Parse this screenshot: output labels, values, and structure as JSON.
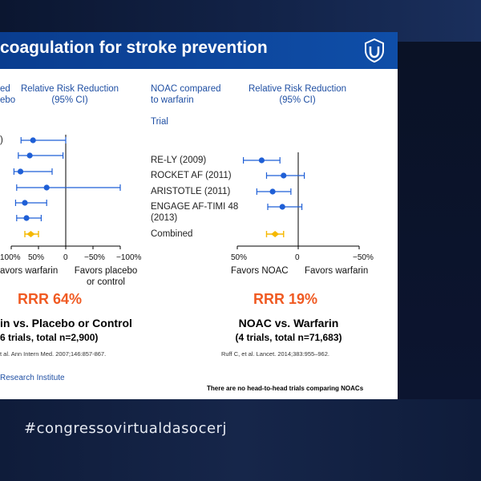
{
  "slide": {
    "title": "coagulation for stroke prevention",
    "footer_left": "Research Institute",
    "footer_note": "There are no head-to-head trials comparing NOACs"
  },
  "hashtag": "#congressovirtualdasocerj",
  "left_panel": {
    "header_left": [
      "ed",
      "ebo"
    ],
    "header_right": [
      "Relative Risk Reduction",
      "(95% CI)"
    ],
    "ticks": [
      "100%",
      "50%",
      "0",
      "−50%",
      "−100%"
    ],
    "favors_left": "avors warfarin",
    "favors_right": [
      "Favors placebo",
      "or control"
    ],
    "rrr": "RRR 64%",
    "comparison": "in vs. Placebo or Control",
    "subtitle": "6 trials, total n=2,900)",
    "citation": "t al. Ann Intern Med. 2007;146:857-867.",
    "first_label": ")"
  },
  "right_panel": {
    "header_left": [
      "NOAC compared",
      "to warfarin"
    ],
    "header_right": [
      "Relative Risk Reduction",
      "(95% CI)"
    ],
    "trial_header": "Trial",
    "trials": [
      "RE-LY (2009)",
      "ROCKET AF (2011)",
      "ARISTOTLE (2011)",
      "ENGAGE AF-TIMI 48",
      "(2013)",
      "Combined"
    ],
    "ticks": [
      "50%",
      "0",
      "−50%"
    ],
    "favors_left": "Favors NOAC",
    "favors_right": "Favors warfarin",
    "rrr": "RRR 19%",
    "comparison": "NOAC vs. Warfarin",
    "subtitle": "(4 trials, total n=71,683)",
    "citation": "Ruff C, et al. Lancet. 2014;383:955–962."
  },
  "colors": {
    "point": "#1f5fd6",
    "combined": "#f5b800",
    "rrr": "#f05a22",
    "header": "#1f4fa3",
    "title_bar": "#0a3d8f"
  },
  "chart_data": [
    {
      "type": "scatter",
      "title": "",
      "xlabel": "Relative Risk Reduction (95% CI)",
      "xlim": [
        -100,
        100
      ],
      "x_reversed": true,
      "series": [
        {
          "name": "Trials",
          "points": [
            {
              "rrr": 60,
              "lo": 0,
              "hi": 82
            },
            {
              "rrr": 66,
              "lo": 5,
              "hi": 87
            },
            {
              "rrr": 83,
              "lo": 25,
              "hi": 95
            },
            {
              "rrr": 35,
              "lo": -100,
              "hi": 90
            },
            {
              "rrr": 75,
              "lo": 35,
              "hi": 92
            },
            {
              "rrr": 72,
              "lo": 45,
              "hi": 90
            }
          ]
        },
        {
          "name": "Combined",
          "points": [
            {
              "rrr": 64,
              "lo": 50,
              "hi": 75
            }
          ]
        }
      ]
    },
    {
      "type": "scatter",
      "title": "",
      "xlabel": "Relative Risk Reduction (95% CI)",
      "xlim": [
        -50,
        50
      ],
      "x_reversed": true,
      "series": [
        {
          "name": "Trials",
          "points": [
            {
              "trial": "RE-LY (2009)",
              "rrr": 30,
              "lo": 15,
              "hi": 45
            },
            {
              "trial": "ROCKET AF (2011)",
              "rrr": 12,
              "lo": -5,
              "hi": 26
            },
            {
              "trial": "ARISTOTLE (2011)",
              "rrr": 21,
              "lo": 6,
              "hi": 34
            },
            {
              "trial": "ENGAGE AF-TIMI 48 (2013)",
              "rrr": 13,
              "lo": -3,
              "hi": 25
            }
          ]
        },
        {
          "name": "Combined",
          "points": [
            {
              "trial": "Combined",
              "rrr": 19,
              "lo": 12,
              "hi": 26
            }
          ]
        }
      ]
    }
  ]
}
